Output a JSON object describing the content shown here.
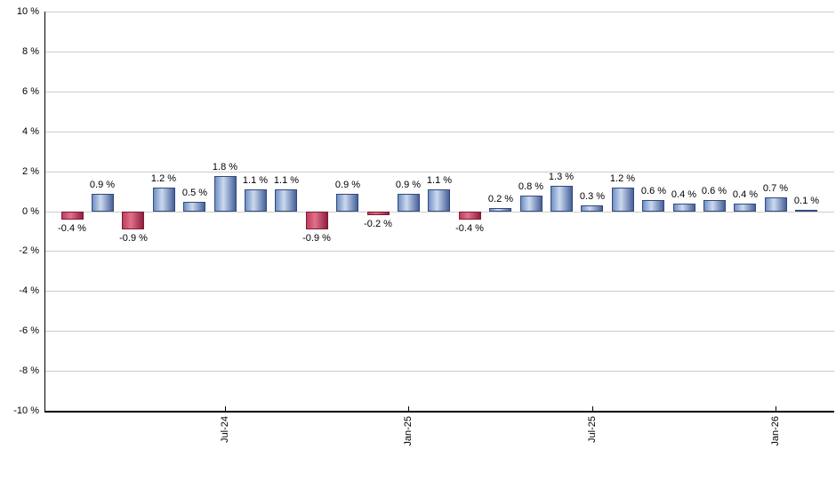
{
  "chart_data": {
    "type": "bar",
    "title": "",
    "xlabel": "",
    "ylabel": "",
    "unit": "%",
    "ylim": [
      -10,
      10
    ],
    "ytick_step": 2,
    "ytick_labels": [
      "10 %",
      "8 %",
      "6 %",
      "4 %",
      "2 %",
      "0 %",
      "-2 %",
      "-4 %",
      "-6 %",
      "-8 %",
      "-10 %"
    ],
    "values": [
      -0.4,
      0.9,
      -0.9,
      1.2,
      0.5,
      1.8,
      1.1,
      1.1,
      -0.9,
      0.9,
      -0.2,
      0.9,
      1.1,
      -0.4,
      0.2,
      0.8,
      1.3,
      0.3,
      1.2,
      0.6,
      0.4,
      0.6,
      0.4,
      0.7,
      0.1
    ],
    "bar_value_labels": [
      "-0.4 %",
      "0.9 %",
      "-0.9 %",
      "1.2 %",
      "0.5 %",
      "1.8 %",
      "1.1 %",
      "1.1 %",
      "-0.9 %",
      "0.9 %",
      "-0.2 %",
      "0.9 %",
      "1.1 %",
      "-0.4 %",
      "0.2 %",
      "0.8 %",
      "1.3 %",
      "0.3 %",
      "1.2 %",
      "0.6 %",
      "0.4 %",
      "0.6 %",
      "0.4 %",
      "0.7 %",
      "0.1 %"
    ],
    "xticks": [
      {
        "label": "Jul-24",
        "bar_index": 5
      },
      {
        "label": "Jan-25",
        "bar_index": 11
      },
      {
        "label": "Jul-25",
        "bar_index": 17
      },
      {
        "label": "Jan-26",
        "bar_index": 23
      }
    ],
    "grid": true,
    "legend": "none",
    "colors": {
      "positive_bar_edge_left": "#7090c5",
      "positive_bar_highlight": "#ccd9ee",
      "positive_bar_edge_right": "#46619a",
      "positive_bar_border": "#33497b",
      "negative_bar_edge_left": "#bd3f60",
      "negative_bar_highlight": "#e27089",
      "negative_bar_edge_right": "#8e1f3f",
      "negative_bar_border": "#7d1b37",
      "gridline": "#cccccc",
      "axis": "#000000",
      "label_text": "#000000",
      "background": "#ffffff"
    }
  }
}
